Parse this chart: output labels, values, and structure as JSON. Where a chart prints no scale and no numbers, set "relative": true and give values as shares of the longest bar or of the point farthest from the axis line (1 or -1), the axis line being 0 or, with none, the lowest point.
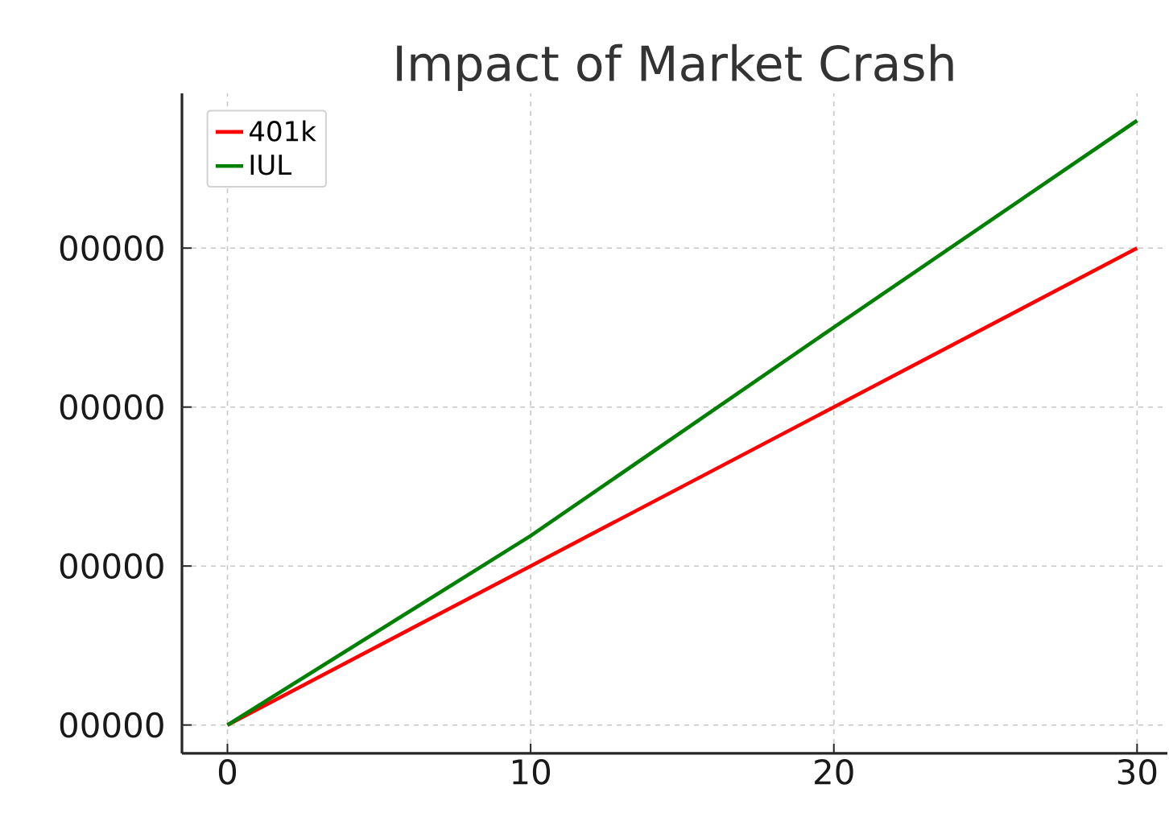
{
  "chart_data": {
    "type": "line",
    "title": "Impact of Market Crash",
    "x": [
      0,
      10,
      20,
      30
    ],
    "relative": true,
    "series": [
      {
        "name": "401k",
        "color": "#ff0000",
        "values": [
          0,
          0.263,
          0.526,
          0.789
        ]
      },
      {
        "name": "IUL",
        "color": "#008000",
        "values": [
          0,
          0.313,
          0.658,
          1
        ]
      }
    ],
    "xlim": [
      -1.5,
      31
    ],
    "xticks": [
      0,
      10,
      20,
      30
    ],
    "annotations": [
      "00000",
      "00000",
      "00000",
      "00000"
    ],
    "grid": true,
    "legend": "top left",
    "line_style": "solid",
    "marker": "none"
  }
}
